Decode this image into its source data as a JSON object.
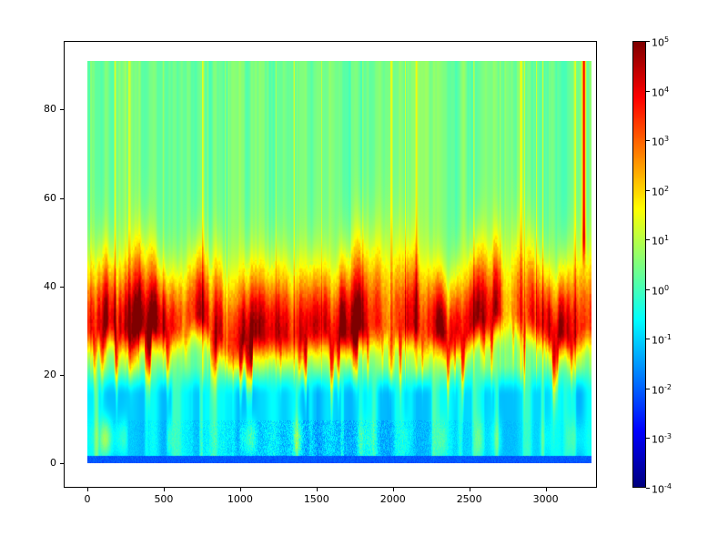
{
  "figure": {
    "background": "#ffffff",
    "frame_color": "#000000",
    "tick_label_color": "#000000"
  },
  "chart_data": {
    "type": "heatmap",
    "title": "",
    "xlabel": "",
    "ylabel": "",
    "x_range": [
      0,
      3300
    ],
    "y_range": [
      0,
      91
    ],
    "x_ticks": [
      0,
      500,
      1000,
      1500,
      2000,
      2500,
      3000
    ],
    "y_ticks": [
      0,
      20,
      40,
      60,
      80
    ],
    "grid": false,
    "legend_position": "colorbar-right",
    "colorbar": {
      "scale": "log",
      "colormap": "jet",
      "min_value": 0.0001,
      "max_value": 100000.0,
      "tick_labels_base": "10",
      "tick_exponents": [
        5,
        4,
        3,
        2,
        1,
        0,
        -1,
        -2,
        -3,
        -4
      ]
    },
    "content_description": "Spectrogram-like log-scale heatmap: intense red/orange flame band between y=20 and y=50 with vertical streaks, green background above with thin yellow vertical lines, cyan low-intensity region below y=18 with green/yellow patches near the bottom left, scattered dark blue speckles around y=2-8 in the middle x range, thin blue band along y=0-1.5, and a red vertical streak near x=3250 in the upper region.",
    "pattern": {
      "seed": 42,
      "flame_center_y": 31,
      "flame_sigma_up": 9,
      "flame_sigma_down": 4,
      "flame_peak_log": 3.7,
      "background_log": 0.35,
      "lower_log": -0.95,
      "bottom_log": -2.1,
      "bottom_band_height": 1.6,
      "gap_positions_x": [
        1975,
        2760
      ],
      "right_red_line_x": 3252
    }
  }
}
